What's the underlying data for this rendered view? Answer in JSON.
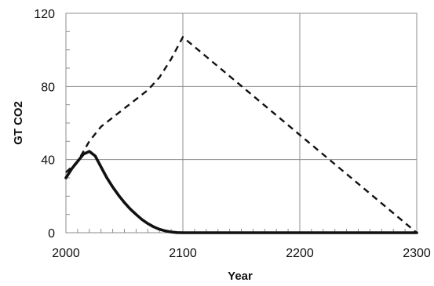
{
  "chart_data": {
    "type": "line",
    "title": "",
    "xlabel": "Year",
    "ylabel": "GT CO2",
    "xlim": [
      2000,
      2300
    ],
    "ylim": [
      0,
      120
    ],
    "x_ticks": [
      2000,
      2100,
      2200,
      2300
    ],
    "x_tick_labels": [
      "2000",
      "2100",
      "2200",
      "2300"
    ],
    "y_ticks": [
      0,
      40,
      80,
      120
    ],
    "y_tick_labels": [
      "0",
      "40",
      "80",
      "120"
    ],
    "x_minor_step": 10,
    "y_minor_step": 10,
    "grid": true,
    "legend": "none",
    "series": [
      {
        "color": "#111111",
        "line_style": "solid",
        "points": [
          [
            2000,
            30
          ],
          [
            2005,
            35
          ],
          [
            2010,
            39
          ],
          [
            2015,
            43
          ],
          [
            2020,
            44.5
          ],
          [
            2025,
            42
          ],
          [
            2030,
            36
          ],
          [
            2035,
            30
          ],
          [
            2040,
            25
          ],
          [
            2045,
            20.5
          ],
          [
            2050,
            16.5
          ],
          [
            2055,
            13
          ],
          [
            2060,
            10
          ],
          [
            2065,
            7.2
          ],
          [
            2070,
            5
          ],
          [
            2075,
            3.2
          ],
          [
            2080,
            1.9
          ],
          [
            2085,
            1
          ],
          [
            2090,
            0.4
          ],
          [
            2095,
            0.1
          ],
          [
            2100,
            0
          ],
          [
            2300,
            0
          ]
        ]
      },
      {
        "color": "#111111",
        "line_style": "dashed",
        "points": [
          [
            2000,
            33
          ],
          [
            2010,
            39
          ],
          [
            2020,
            50
          ],
          [
            2030,
            58
          ],
          [
            2040,
            63
          ],
          [
            2050,
            68
          ],
          [
            2060,
            73
          ],
          [
            2070,
            78
          ],
          [
            2080,
            85
          ],
          [
            2090,
            95
          ],
          [
            2100,
            107
          ],
          [
            2300,
            0
          ]
        ]
      }
    ]
  }
}
